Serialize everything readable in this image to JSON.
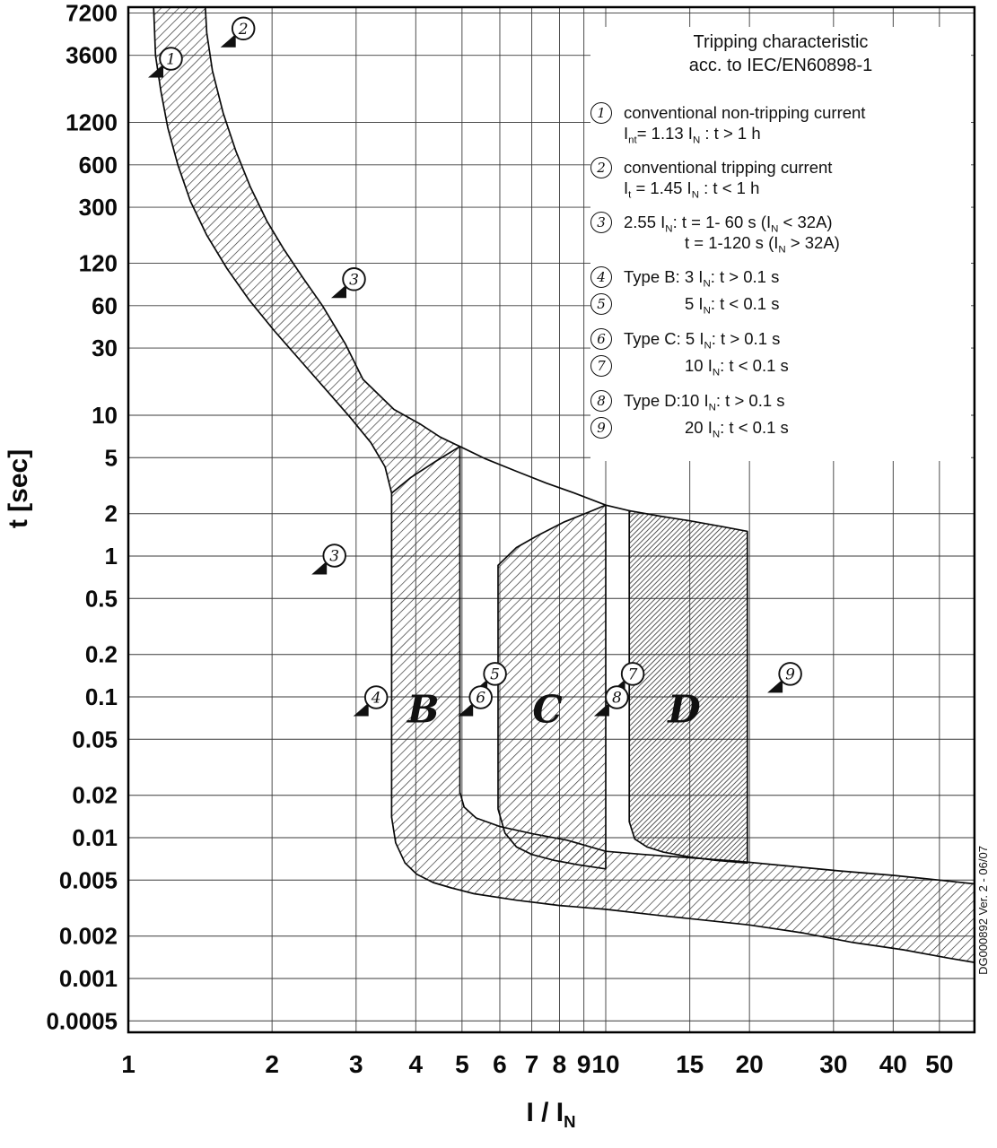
{
  "page": {
    "background": "#ffffff",
    "ink": "#111111"
  },
  "legend": {
    "title_line1": "Tripping characteristic",
    "title_line2": "acc. to IEC/EN60898-1",
    "entries": [
      {
        "num": "1",
        "tight": false,
        "lines": [
          {
            "t": "conventional non-tripping current"
          },
          {
            "t": "I_{nt}= 1.13 I_{N} : t > 1 h"
          }
        ]
      },
      {
        "num": "2",
        "tight": false,
        "lines": [
          {
            "t": "conventional tripping current"
          },
          {
            "t": "I_{t} = 1.45 I_{N} : t < 1 h"
          }
        ]
      },
      {
        "num": "3",
        "tight": false,
        "lines": [
          {
            "t": "2.55 I_{N}: t = 1- 60 s (I_{N} < 32A)"
          },
          {
            "t": "t = 1-120 s (I_{N} > 32A)",
            "indent": true
          }
        ]
      },
      {
        "num": "4",
        "tight": true,
        "lines": [
          {
            "t": "Type B: 3 I_{N}: t > 0.1 s"
          }
        ]
      },
      {
        "num": "5",
        "tight": false,
        "lines": [
          {
            "t": "5 I_{N}: t < 0.1 s",
            "indent": true
          }
        ]
      },
      {
        "num": "6",
        "tight": true,
        "lines": [
          {
            "t": "Type C: 5 I_{N}: t > 0.1 s"
          }
        ]
      },
      {
        "num": "7",
        "tight": false,
        "lines": [
          {
            "t": "10 I_{N}: t < 0.1 s",
            "indent": true
          }
        ]
      },
      {
        "num": "8",
        "tight": true,
        "lines": [
          {
            "t": "Type D:10 I_{N}: t > 0.1 s"
          }
        ]
      },
      {
        "num": "9",
        "tight": false,
        "lines": [
          {
            "t": "20 I_{N}: t < 0.1 s",
            "indent": true
          }
        ]
      }
    ]
  },
  "watermark": "DG000892 Ver. 2 - 06/07",
  "chart_data": {
    "type": "area",
    "scale": "log-log",
    "title": "Tripping characteristic acc. to IEC/EN60898-1",
    "xlabel": "I / I_{N}",
    "ylabel": "t [sec]",
    "x_ticks": [
      1,
      2,
      3,
      4,
      5,
      6,
      7,
      8,
      9,
      10,
      15,
      20,
      30,
      40,
      50
    ],
    "y_ticks": [
      7200,
      3600,
      1200,
      600,
      300,
      120,
      60,
      30,
      10,
      5,
      2,
      1,
      0.5,
      0.2,
      0.1,
      0.05,
      0.02,
      0.01,
      0.005,
      0.002,
      0.001,
      0.0005
    ],
    "x_range": [
      1,
      59.2
    ],
    "y_range": [
      0.00042,
      7900
    ],
    "grid": true,
    "bands": {
      "thermal_plus_b": [
        [
          1.13,
          7900
        ],
        [
          1.14,
          3600
        ],
        [
          1.17,
          2000
        ],
        [
          1.21,
          1100
        ],
        [
          1.27,
          600
        ],
        [
          1.35,
          330
        ],
        [
          1.46,
          190
        ],
        [
          1.61,
          110
        ],
        [
          1.79,
          66
        ],
        [
          2.02,
          40
        ],
        [
          2.28,
          25
        ],
        [
          2.58,
          15.5
        ],
        [
          2.92,
          9.6
        ],
        [
          3.22,
          6.4
        ],
        [
          3.45,
          4.3
        ],
        [
          3.56,
          2.8
        ],
        [
          3.56,
          0.014
        ],
        [
          3.63,
          0.0092
        ],
        [
          3.8,
          0.0066
        ],
        [
          4.02,
          0.0055
        ],
        [
          4.35,
          0.0048
        ],
        [
          4.75,
          0.0044
        ],
        [
          5.3,
          0.004
        ],
        [
          6.5,
          0.0036
        ],
        [
          8,
          0.0033
        ],
        [
          10,
          0.0031
        ],
        [
          13,
          0.0028
        ],
        [
          16,
          0.0026
        ],
        [
          20,
          0.0024
        ],
        [
          26,
          0.0021
        ],
        [
          33,
          0.0018
        ],
        [
          42,
          0.0016
        ],
        [
          52,
          0.0014
        ],
        [
          59.2,
          0.0013
        ],
        [
          59.2,
          0.0047
        ],
        [
          50,
          0.005
        ],
        [
          40,
          0.0054
        ],
        [
          31,
          0.0058
        ],
        [
          24,
          0.0063
        ],
        [
          19,
          0.0068
        ],
        [
          15,
          0.0072
        ],
        [
          12,
          0.0076
        ],
        [
          10,
          0.008
        ],
        [
          8.3,
          0.0096
        ],
        [
          7.0,
          0.0107
        ],
        [
          6.0,
          0.012
        ],
        [
          5.35,
          0.0138
        ],
        [
          5.05,
          0.0165
        ],
        [
          4.95,
          0.021
        ],
        [
          4.95,
          6.0
        ],
        [
          4.5,
          7.0
        ],
        [
          4.1,
          8.6
        ],
        [
          3.6,
          11
        ],
        [
          3.1,
          18
        ],
        [
          2.85,
          32
        ],
        [
          2.55,
          60
        ],
        [
          2.32,
          95
        ],
        [
          2.12,
          150
        ],
        [
          1.95,
          240
        ],
        [
          1.8,
          420
        ],
        [
          1.68,
          750
        ],
        [
          1.58,
          1400
        ],
        [
          1.5,
          2800
        ],
        [
          1.46,
          5200
        ],
        [
          1.45,
          7900
        ]
      ],
      "type_c": [
        [
          5.95,
          0.86
        ],
        [
          5.95,
          0.016
        ],
        [
          6.15,
          0.0108
        ],
        [
          6.5,
          0.0086
        ],
        [
          7.0,
          0.0076
        ],
        [
          7.8,
          0.0069
        ],
        [
          8.8,
          0.0064
        ],
        [
          10,
          0.006
        ],
        [
          10,
          2.3
        ],
        [
          9.2,
          2.05
        ],
        [
          8.2,
          1.75
        ],
        [
          7.2,
          1.4
        ],
        [
          6.5,
          1.15
        ],
        [
          5.95,
          0.86
        ]
      ],
      "type_d": [
        [
          11.2,
          2.1
        ],
        [
          11.2,
          0.013
        ],
        [
          11.5,
          0.0098
        ],
        [
          12.2,
          0.0086
        ],
        [
          13.2,
          0.0079
        ],
        [
          15,
          0.0073
        ],
        [
          17,
          0.0069
        ],
        [
          19.8,
          0.0066
        ],
        [
          19.8,
          1.5
        ],
        [
          17.5,
          1.62
        ],
        [
          15,
          1.78
        ],
        [
          13,
          1.92
        ],
        [
          11.2,
          2.1
        ]
      ]
    },
    "edge_lines": {
      "b_top": [
        [
          3.56,
          2.8
        ],
        [
          3.9,
          3.6
        ],
        [
          4.4,
          4.7
        ],
        [
          4.95,
          6.0
        ]
      ],
      "upper_continuation": [
        [
          4.95,
          6.0
        ],
        [
          5.6,
          4.9
        ],
        [
          6.5,
          4.0
        ],
        [
          7.5,
          3.3
        ],
        [
          8.6,
          2.8
        ],
        [
          10,
          2.3
        ],
        [
          11.2,
          2.1
        ]
      ]
    },
    "markers": [
      {
        "label": "1",
        "I": 1.1,
        "t": 2500
      },
      {
        "label": "2",
        "I": 1.56,
        "t": 4100
      },
      {
        "label": "3",
        "I": 2.66,
        "t": 68
      },
      {
        "label": "3",
        "I": 2.42,
        "t": 0.74
      },
      {
        "label": "4",
        "I": 2.96,
        "t": 0.073
      },
      {
        "label": "5",
        "I": 5.25,
        "t": 0.107
      },
      {
        "label": "6",
        "I": 4.9,
        "t": 0.073
      },
      {
        "label": "7",
        "I": 10.2,
        "t": 0.107
      },
      {
        "label": "8",
        "I": 9.45,
        "t": 0.073
      },
      {
        "label": "9",
        "I": 21.8,
        "t": 0.107
      }
    ],
    "region_labels": [
      {
        "text": "B",
        "I": 4.15,
        "t": 0.066
      },
      {
        "text": "C",
        "I": 7.55,
        "t": 0.066
      },
      {
        "text": "D",
        "I": 14.6,
        "t": 0.066
      }
    ]
  }
}
